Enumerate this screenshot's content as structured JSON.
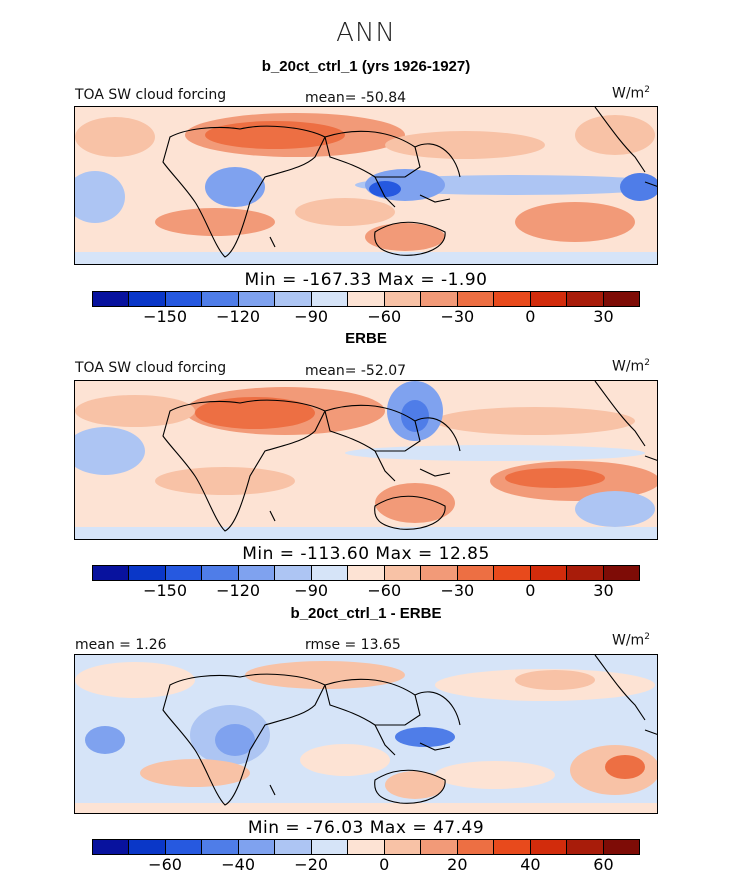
{
  "page": {
    "title": "ANN",
    "units": "W/m",
    "units_exp": "2"
  },
  "panels": [
    {
      "title": "b_20ct_ctrl_1 (yrs 1926-1927)",
      "left_label": "TOA SW cloud forcing",
      "center_label": "mean= -50.84",
      "minmax": "Min = -167.33 Max = -1.90",
      "colorbar_ticks": [
        "-150",
        "-120",
        "-90",
        "-60",
        "-30",
        "0",
        "30"
      ]
    },
    {
      "title": "ERBE",
      "left_label": "TOA SW cloud forcing",
      "center_label": "mean= -52.07",
      "minmax": "Min = -113.60 Max = 12.85",
      "colorbar_ticks": [
        "-150",
        "-120",
        "-90",
        "-60",
        "-30",
        "0",
        "30"
      ]
    },
    {
      "title": "b_20ct_ctrl_1 - ERBE",
      "left_label": "mean =   1.26",
      "center_label": "rmse =  13.65",
      "minmax": "Min = -76.03 Max = 47.49",
      "colorbar_ticks": [
        "-60",
        "-40",
        "-20",
        "0",
        "20",
        "40",
        "60"
      ]
    }
  ],
  "colorbar_colors": [
    "#08129e",
    "#0a37c8",
    "#2659e0",
    "#4f7de8",
    "#7fa2ef",
    "#adc5f3",
    "#d6e4f8",
    "#fde3d4",
    "#f8c2a6",
    "#f29a78",
    "#ed6f43",
    "#e84a1c",
    "#d22c0c",
    "#a81c0a",
    "#7e0c06"
  ]
}
